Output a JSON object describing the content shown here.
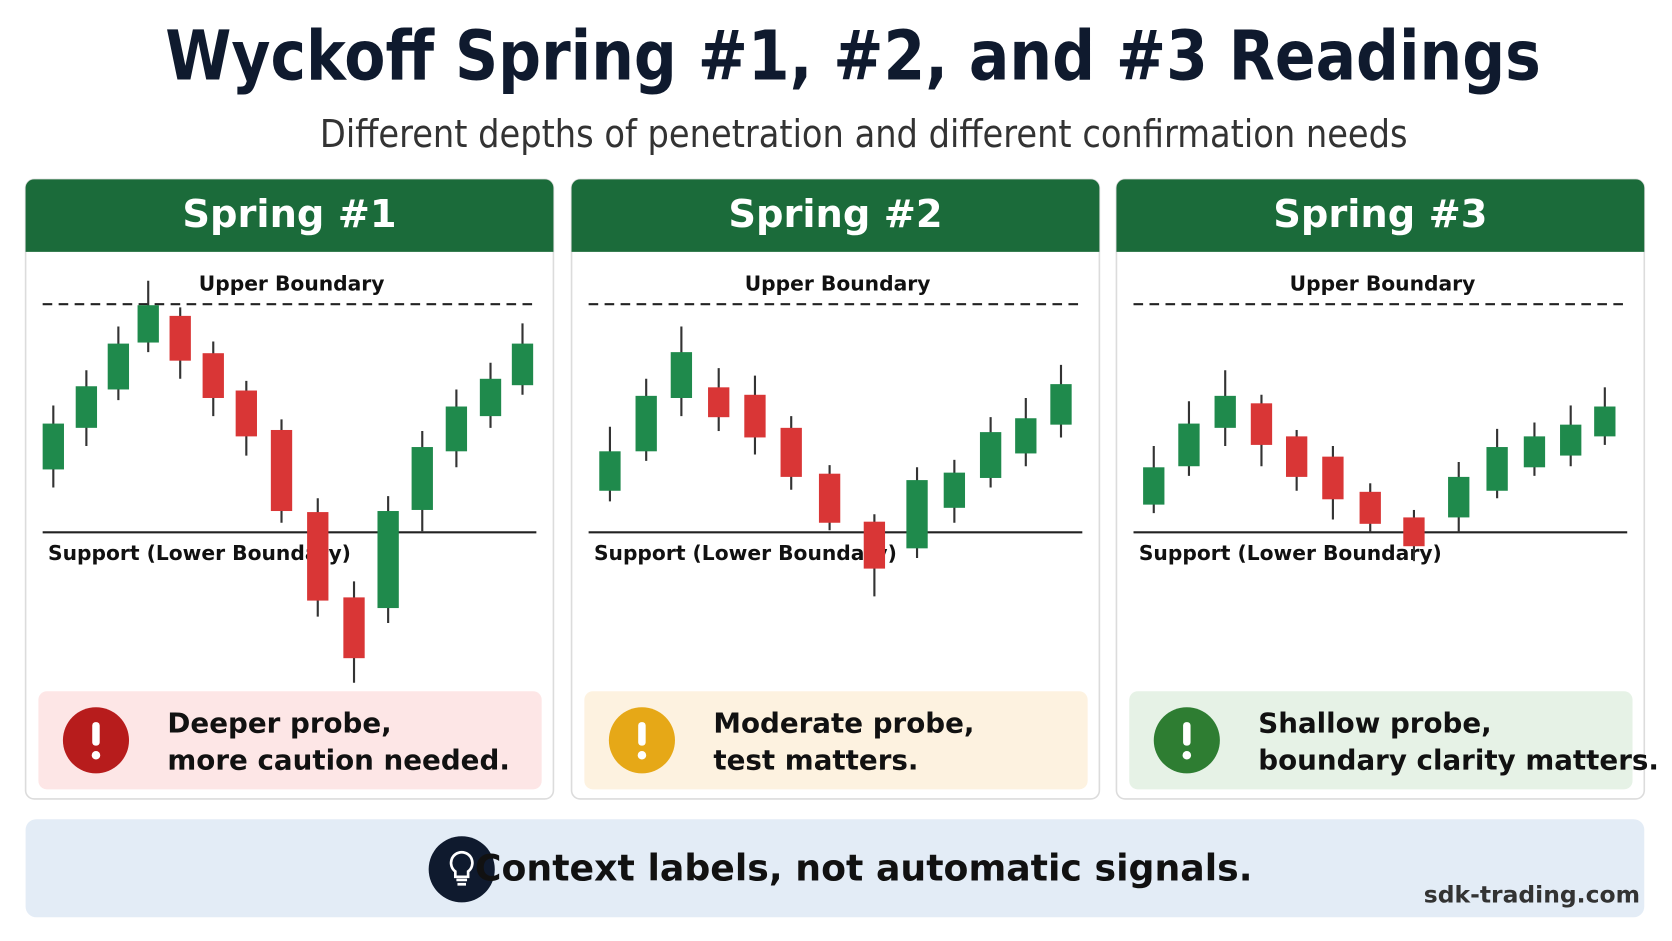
{
  "header": {
    "title": "Wyckoff Spring #1, #2, and #3 Readings",
    "subtitle": "Different depths of penetration and different confirmation needs"
  },
  "panels": [
    {
      "title": "Spring #1",
      "upper_label": "Upper Boundary",
      "support_label": "Support (Lower Boundary)",
      "note_lines": [
        "Deeper probe,",
        "more caution needed."
      ]
    },
    {
      "title": "Spring #2",
      "upper_label": "Upper Boundary",
      "support_label": "Support (Lower Boundary)",
      "note_lines": [
        "Moderate probe,",
        "test matters."
      ]
    },
    {
      "title": "Spring #3",
      "upper_label": "Upper Boundary",
      "support_label": "Support (Lower Boundary)",
      "note_lines": [
        "Shallow probe,",
        "boundary clarity matters."
      ]
    }
  ],
  "footer": {
    "text": "Context labels, not automatic signals.",
    "credit": "sdk-trading.com"
  }
}
